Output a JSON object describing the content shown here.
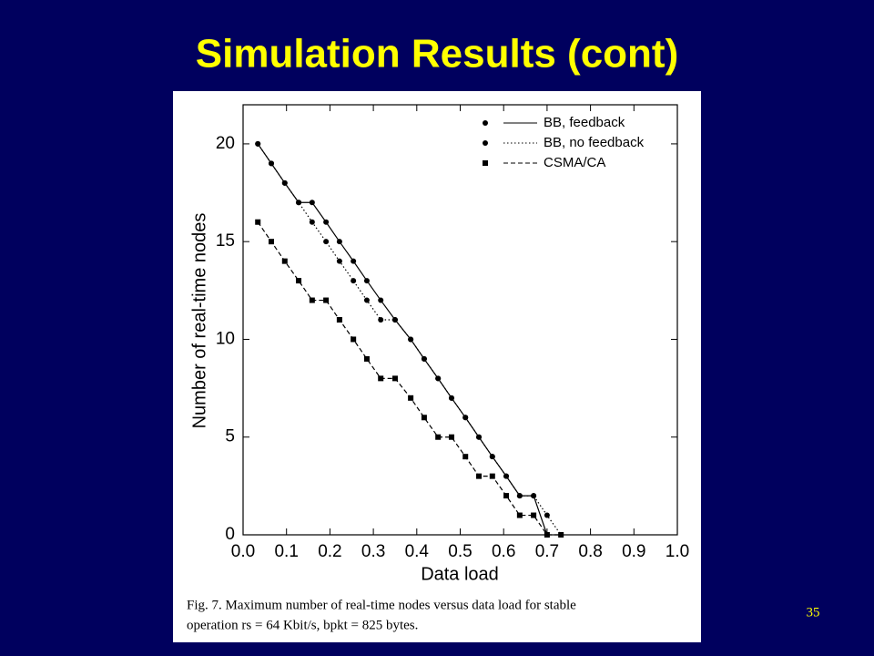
{
  "slide": {
    "title": "Simulation Results (cont)",
    "page_number": "35",
    "caption": [
      "Fig. 7.   Maximum number of real-time nodes versus data load for stable",
      "operation rs = 64 Kbit/s, bpkt = 825 bytes."
    ]
  },
  "chart_data": {
    "type": "line",
    "x_label": "Data load",
    "y_label": "Number of real-time nodes",
    "xlim": [
      0,
      1
    ],
    "ylim": [
      0,
      22
    ],
    "xticks": [
      {
        "value": 0,
        "label": "0.0"
      },
      0.1,
      0.2,
      0.3,
      0.4,
      0.5,
      0.6,
      0.7,
      0.8,
      0.9,
      {
        "value": 1,
        "label": "1.0"
      }
    ],
    "yticks": [
      0,
      5,
      10,
      15,
      20
    ],
    "series": [
      {
        "name": "BB, feedback",
        "color": "#000000",
        "line_style": "solid",
        "marker": "circle",
        "x": [
          0.034,
          0.065,
          0.096,
          0.128,
          0.159,
          0.191,
          0.222,
          0.254,
          0.285,
          0.317,
          0.35,
          0.386,
          0.417,
          0.449,
          0.48,
          0.512,
          0.543,
          0.574,
          0.606,
          0.637,
          0.669,
          0.7
        ],
        "values": [
          20,
          19,
          18,
          17,
          17,
          16,
          15,
          14,
          13,
          12,
          11,
          10,
          9,
          8,
          7,
          6,
          5,
          4,
          3,
          2,
          2,
          0
        ]
      },
      {
        "name": "BB, no feedback",
        "color": "#000000",
        "line_style": "dotted",
        "marker": "circle",
        "x": [
          0.034,
          0.065,
          0.096,
          0.128,
          0.159,
          0.191,
          0.222,
          0.254,
          0.285,
          0.317,
          0.35,
          0.386,
          0.417,
          0.449,
          0.48,
          0.512,
          0.543,
          0.574,
          0.606,
          0.637,
          0.669,
          0.7,
          0.732
        ],
        "values": [
          20,
          19,
          18,
          17,
          16,
          15,
          14,
          13,
          12,
          11,
          11,
          10,
          9,
          8,
          7,
          6,
          5,
          4,
          3,
          2,
          2,
          1,
          0
        ]
      },
      {
        "name": "CSMA/CA",
        "color": "#000000",
        "line_style": "dashed",
        "marker": "square",
        "x": [
          0.034,
          0.065,
          0.096,
          0.128,
          0.159,
          0.191,
          0.222,
          0.254,
          0.285,
          0.317,
          0.35,
          0.386,
          0.417,
          0.449,
          0.48,
          0.512,
          0.543,
          0.574,
          0.606,
          0.637,
          0.669,
          0.7,
          0.732
        ],
        "values": [
          16,
          15,
          14,
          13,
          12,
          12,
          11,
          10,
          9,
          8,
          8,
          7,
          6,
          5,
          5,
          4,
          3,
          3,
          2,
          1,
          1,
          0,
          0
        ]
      }
    ]
  }
}
